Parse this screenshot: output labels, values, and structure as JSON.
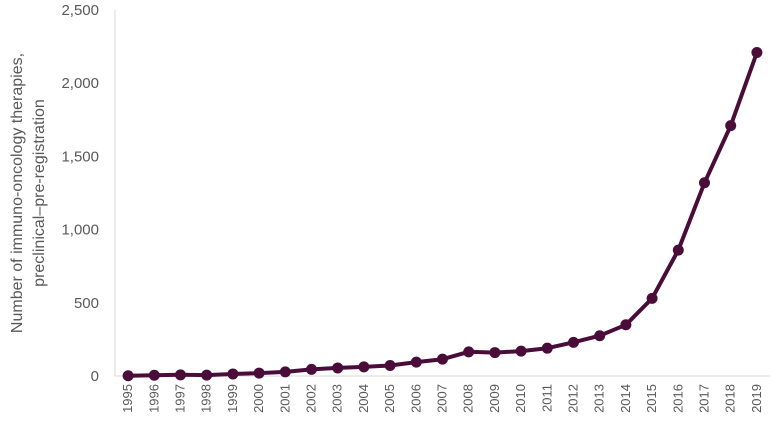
{
  "chart_data": {
    "type": "line",
    "title": "",
    "ylabel": [
      "Number of immuno-oncology therapies,",
      "preclinical–pre-registration"
    ],
    "xlabel": "",
    "x": [
      "1995",
      "1996",
      "1997",
      "1998",
      "1999",
      "2000",
      "2001",
      "2002",
      "2003",
      "2004",
      "2005",
      "2006",
      "2007",
      "2008",
      "2009",
      "2010",
      "2011",
      "2012",
      "2013",
      "2014",
      "2015",
      "2016",
      "2017",
      "2018",
      "2019"
    ],
    "y_tick_labels": [
      "0",
      "500",
      "1,000",
      "1,500",
      "2,000",
      "2,500"
    ],
    "ylim": [
      0,
      2500
    ],
    "series": [
      {
        "values": [
          2,
          5,
          8,
          6,
          14,
          20,
          28,
          45,
          55,
          62,
          72,
          95,
          115,
          165,
          160,
          170,
          190,
          230,
          275,
          350,
          530,
          860,
          1320,
          1710,
          2210
        ]
      }
    ],
    "line_color": "#4a0d3a",
    "axis_color": "#d9d9d9",
    "grid": false,
    "legend": "none"
  }
}
